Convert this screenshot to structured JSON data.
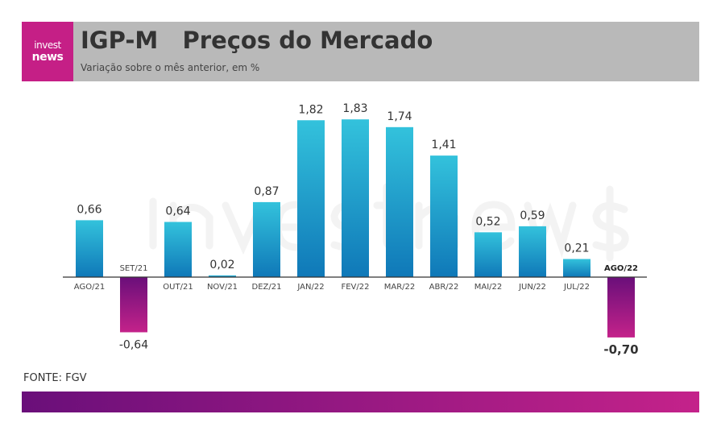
{
  "header": {
    "logo_line1": "invest",
    "logo_line2": "news",
    "title": "IGP-M   Preços do Mercado",
    "subtitle": "Variação sobre o mês anterior, em %"
  },
  "watermark": "investnews",
  "source": "FONTE: FGV",
  "colors": {
    "positive_top": "#33c2dc",
    "positive_bottom": "#0f78b8",
    "negative_top": "#6a0f7a",
    "negative_bottom": "#c4228a"
  },
  "chart_data": {
    "type": "bar",
    "title": "IGP-M Preços do Mercado",
    "categories": [
      "AGO/21",
      "SET/21",
      "OUT/21",
      "NOV/21",
      "DEZ/21",
      "JAN/22",
      "FEV/22",
      "MAR/22",
      "ABR/22",
      "MAI/22",
      "JUN/22",
      "JUL/22",
      "AGO/22"
    ],
    "values": [
      0.66,
      -0.64,
      0.64,
      0.02,
      0.87,
      1.82,
      1.83,
      1.74,
      1.41,
      0.52,
      0.59,
      0.21,
      -0.7
    ],
    "labels": [
      "0,66",
      "-0,64",
      "0,64",
      "0,02",
      "0,87",
      "1,82",
      "1,83",
      "1,74",
      "1,41",
      "0,52",
      "0,59",
      "0,21",
      "-0,70"
    ],
    "highlight_index": 12,
    "ylabel": "%",
    "xlabel": ""
  }
}
